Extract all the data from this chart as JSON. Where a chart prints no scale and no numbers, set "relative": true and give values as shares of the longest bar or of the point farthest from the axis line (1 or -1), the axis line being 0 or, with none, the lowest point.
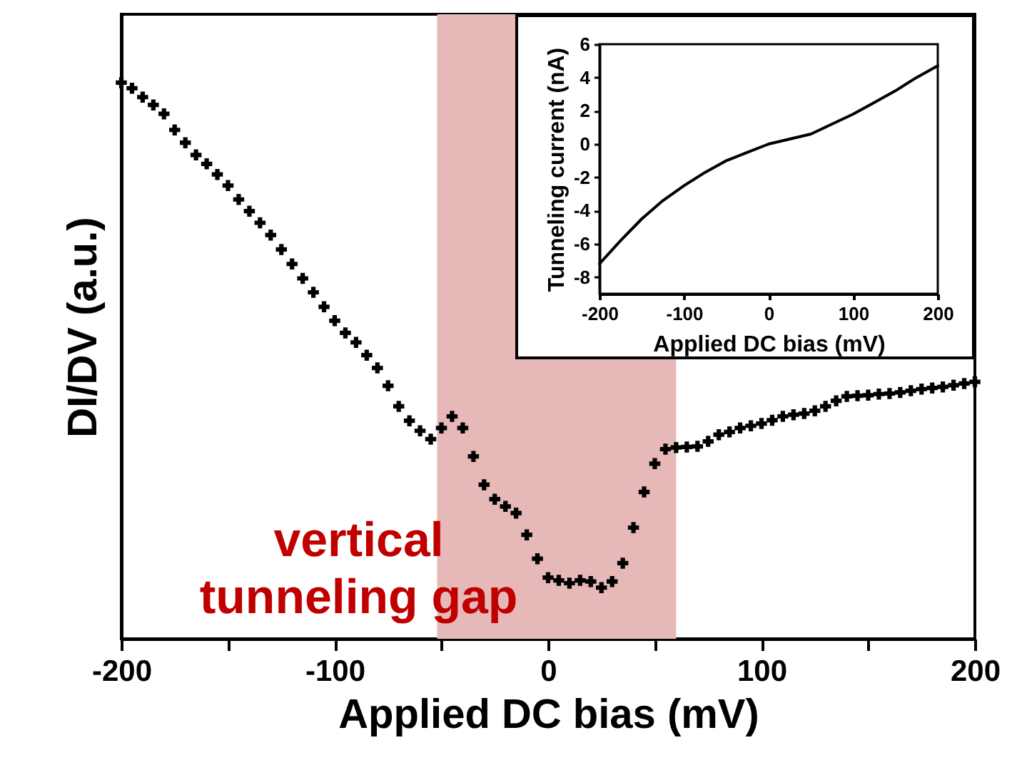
{
  "chart_data": [
    {
      "type": "scatter",
      "xlabel": "Applied DC bias (mV)",
      "ylabel": "DI/DV (a.u.)",
      "relative": true,
      "marker": "cross",
      "grid": false,
      "x": [
        -200,
        -195,
        -190,
        -185,
        -180,
        -175,
        -170,
        -165,
        -160,
        -155,
        -150,
        -145,
        -140,
        -135,
        -130,
        -125,
        -120,
        -115,
        -110,
        -105,
        -100,
        -95,
        -90,
        -85,
        -80,
        -75,
        -70,
        -65,
        -60,
        -55,
        -50,
        -45,
        -40,
        -35,
        -30,
        -25,
        -20,
        -15,
        -10,
        -5,
        0,
        5,
        10,
        15,
        20,
        25,
        30,
        35,
        40,
        45,
        50,
        55,
        60,
        65,
        70,
        75,
        80,
        85,
        90,
        95,
        100,
        105,
        110,
        115,
        120,
        125,
        130,
        135,
        140,
        145,
        150,
        155,
        160,
        165,
        170,
        175,
        180,
        185,
        190,
        195,
        200
      ],
      "series": [
        {
          "color": "#000000",
          "values": [
            1,
            0.99,
            0.974,
            0.96,
            0.944,
            0.915,
            0.892,
            0.87,
            0.854,
            0.835,
            0.815,
            0.79,
            0.769,
            0.748,
            0.726,
            0.7,
            0.674,
            0.648,
            0.623,
            0.597,
            0.572,
            0.55,
            0.533,
            0.51,
            0.487,
            0.455,
            0.418,
            0.392,
            0.374,
            0.359,
            0.379,
            0.4,
            0.379,
            0.328,
            0.277,
            0.251,
            0.238,
            0.226,
            0.187,
            0.144,
            0.11,
            0.105,
            0.1,
            0.105,
            0.103,
            0.092,
            0.103,
            0.136,
            0.2,
            0.264,
            0.315,
            0.341,
            0.344,
            0.345,
            0.346,
            0.355,
            0.367,
            0.372,
            0.379,
            0.383,
            0.387,
            0.393,
            0.4,
            0.403,
            0.405,
            0.41,
            0.418,
            0.428,
            0.436,
            0.437,
            0.438,
            0.44,
            0.441,
            0.443,
            0.446,
            0.449,
            0.451,
            0.453,
            0.456,
            0.459,
            0.462
          ]
        }
      ],
      "xlim": [
        -200,
        200
      ],
      "xticks": [
        -200,
        {
          "value": -150,
          "label": null
        },
        -100,
        {
          "value": -50,
          "label": null
        },
        0,
        {
          "value": 50,
          "label": null
        },
        100,
        {
          "value": 150,
          "label": null
        },
        200
      ],
      "bands": [
        {
          "axis": "x",
          "from": -52,
          "to": 60,
          "color": "#e6b8b7",
          "label": "vertical\ntunneling gap"
        }
      ]
    },
    {
      "type": "line",
      "xlabel": "Applied DC bias (mV)",
      "ylabel": "Tunneling current (nA)",
      "grid": false,
      "x": [
        -200,
        -175,
        -150,
        -125,
        -100,
        -75,
        -50,
        -25,
        0,
        25,
        50,
        75,
        100,
        125,
        150,
        175,
        200
      ],
      "series": [
        {
          "color": "#000000",
          "values": [
            -7.2,
            -5.8,
            -4.5,
            -3.4,
            -2.5,
            -1.7,
            -1.0,
            -0.5,
            0.0,
            0.3,
            0.6,
            1.2,
            1.8,
            2.5,
            3.2,
            4.0,
            4.7
          ]
        }
      ],
      "xlim": [
        -200,
        200
      ],
      "xticks": [
        -200,
        -100,
        0,
        100,
        200
      ],
      "ylim": [
        -9,
        6
      ],
      "yticks": [
        -8,
        -6,
        -4,
        -2,
        0,
        2,
        4,
        6
      ]
    }
  ]
}
